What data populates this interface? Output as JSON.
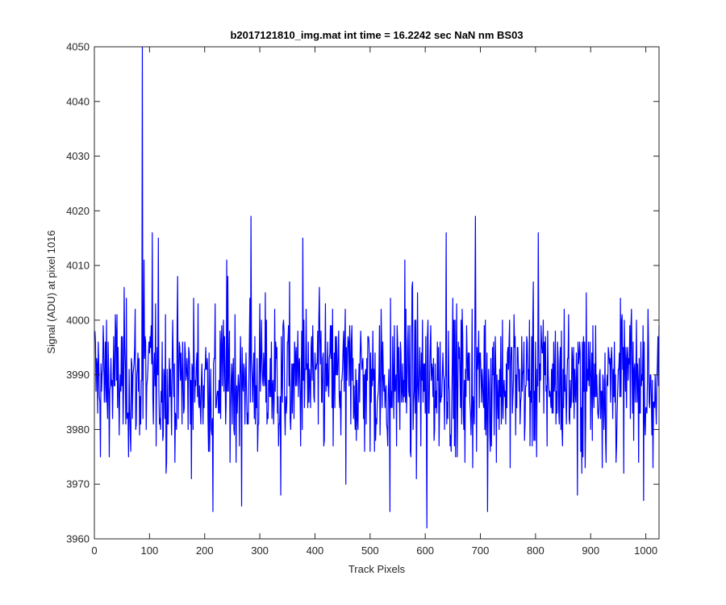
{
  "chart_data": {
    "type": "line",
    "title": "b2017121810_img.mat int time = 16.2242 sec  NaN nm BS03",
    "xlabel": "Track Pixels",
    "ylabel": "Signal (ADU) at pixel 1016",
    "xlim": [
      0,
      1024
    ],
    "ylim": [
      3960,
      4050
    ],
    "xticks": [
      0,
      100,
      200,
      300,
      400,
      500,
      600,
      700,
      800,
      900,
      1000
    ],
    "yticks": [
      3960,
      3970,
      3980,
      3990,
      4000,
      4010,
      4020,
      4030,
      4040,
      4050
    ],
    "grid": false,
    "box": true,
    "series": [
      {
        "color": "#0000ff",
        "n_points": 1024,
        "baseline": 3989,
        "noise_range": [
          3962,
          4019
        ],
        "notable_points": [
          {
            "x": 86,
            "y": 4050
          },
          {
            "x": 89,
            "y": 4011
          },
          {
            "x": 104,
            "y": 4016
          },
          {
            "x": 115,
            "y": 4015
          },
          {
            "x": 214,
            "y": 3965
          },
          {
            "x": 239,
            "y": 4011
          },
          {
            "x": 266,
            "y": 3966
          },
          {
            "x": 283,
            "y": 4019
          },
          {
            "x": 337,
            "y": 3968
          },
          {
            "x": 377,
            "y": 4015
          },
          {
            "x": 455,
            "y": 3970
          },
          {
            "x": 535,
            "y": 3965
          },
          {
            "x": 562,
            "y": 4011
          },
          {
            "x": 602,
            "y": 3962
          },
          {
            "x": 637,
            "y": 4016
          },
          {
            "x": 690,
            "y": 4019
          },
          {
            "x": 712,
            "y": 3965
          },
          {
            "x": 804,
            "y": 4016
          },
          {
            "x": 875,
            "y": 3968
          },
          {
            "x": 1012,
            "y": 3973
          }
        ]
      }
    ]
  }
}
